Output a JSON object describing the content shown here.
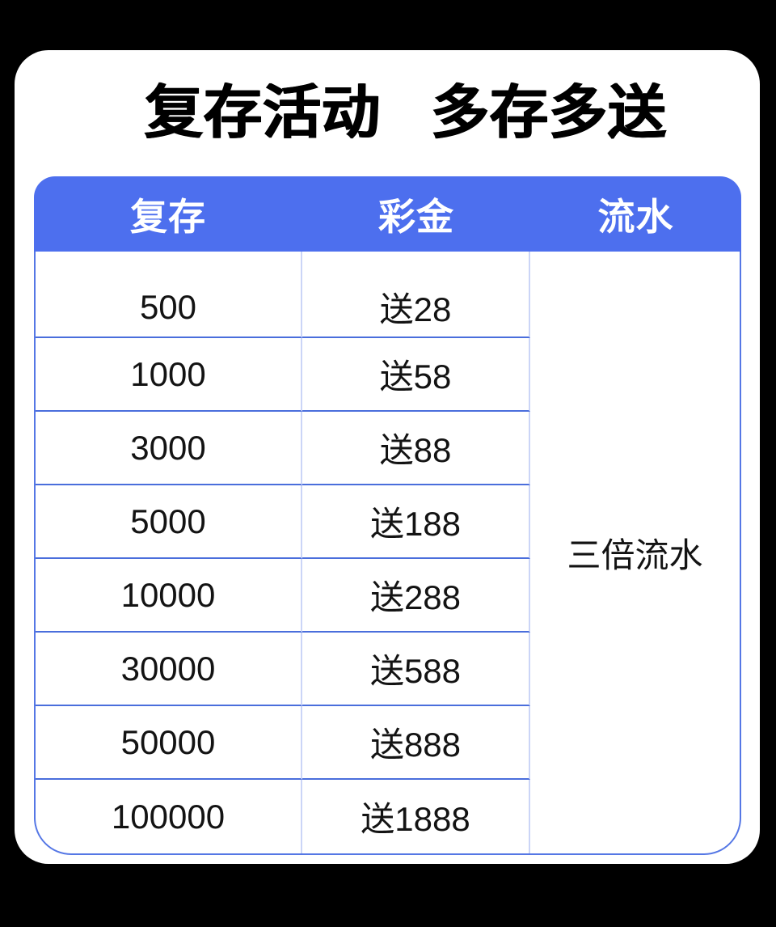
{
  "title": {
    "left": "复存活动",
    "right": "多存多送"
  },
  "table": {
    "headers": [
      {
        "id": "deposit",
        "label": "复存"
      },
      {
        "id": "bonus",
        "label": "彩金"
      },
      {
        "id": "turnover",
        "label": "流水"
      }
    ],
    "rows": [
      {
        "deposit": "500",
        "bonus": "送28"
      },
      {
        "deposit": "1000",
        "bonus": "送58"
      },
      {
        "deposit": "3000",
        "bonus": "送88"
      },
      {
        "deposit": "5000",
        "bonus": "送188"
      },
      {
        "deposit": "10000",
        "bonus": "送288"
      },
      {
        "deposit": "30000",
        "bonus": "送588"
      },
      {
        "deposit": "50000",
        "bonus": "送888"
      },
      {
        "deposit": "100000",
        "bonus": "送1888"
      }
    ],
    "turnover_merged": "三倍流水"
  },
  "colors": {
    "background": "#000000",
    "card": "#ffffff",
    "header_bg": "#4D6FEE",
    "header_text": "#ffffff",
    "outer_border": "#5577E5",
    "row_divider": "#4A6EDC",
    "column_divider": "#CBD5F7",
    "cell_text": "#131313",
    "title_text": "#000000"
  }
}
